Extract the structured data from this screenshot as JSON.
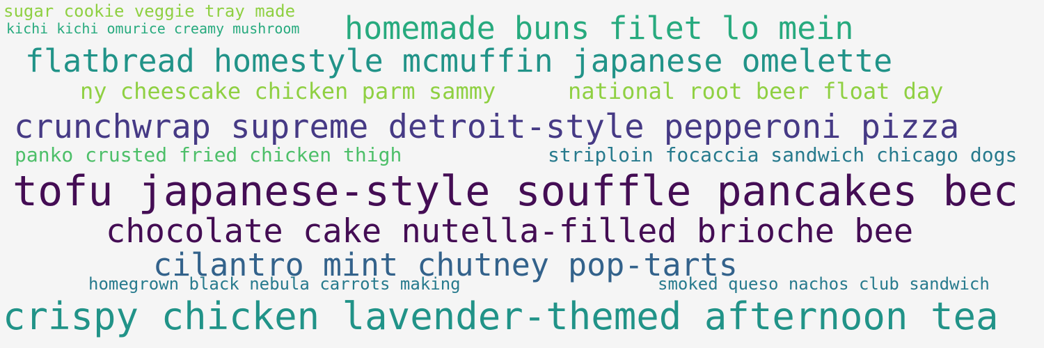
{
  "colors": {
    "background": "#f5f5f5",
    "dark_purple": "#440d54",
    "indigo": "#463a85",
    "slate_blue": "#33628b",
    "teal_blue": "#277a8d",
    "teal": "#219388",
    "green_teal": "#27aa7e",
    "green": "#4dbf69",
    "lime": "#8fd042"
  },
  "words": [
    "sugar cookie veggie tray made",
    "kichi kichi omurice creamy mushroom",
    "homemade buns filet lo mein",
    "flatbread homestyle mcmuffin japanese omelette",
    "ny cheescake chicken parm sammy",
    "national root beer float day",
    "crunchwrap supreme detroit-style pepperoni pizza",
    "panko crusted fried chicken thigh",
    "striploin focaccia sandwich chicago dogs",
    "tofu japanese-style souffle pancakes bec",
    "chocolate cake nutella-filled brioche bee",
    "cilantro mint chutney pop-tarts",
    "homegrown black nebula carrots making",
    "smoked queso nachos club sandwich",
    "crispy chicken lavender-themed afternoon tea"
  ]
}
